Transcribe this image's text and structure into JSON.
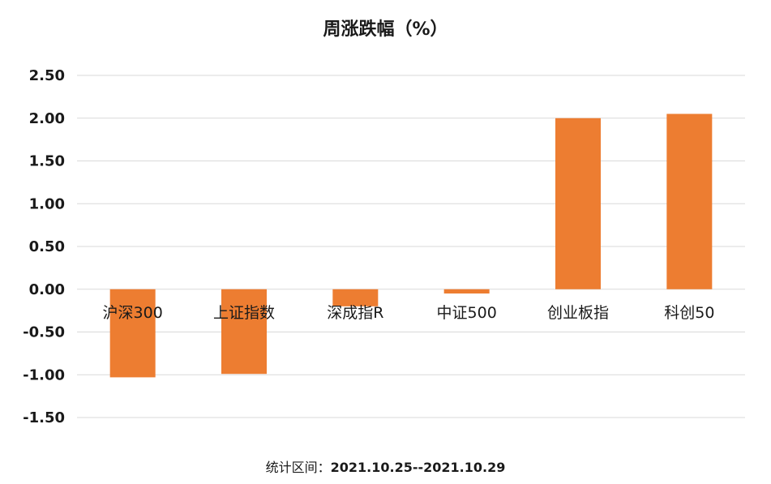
{
  "chart_data": {
    "type": "bar",
    "title": "周涨跌幅（%）",
    "categories": [
      "沪深300",
      "上证指数",
      "深成指R",
      "中证500",
      "创业板指",
      "科创50"
    ],
    "values": [
      -1.03,
      -0.99,
      -0.2,
      -0.05,
      2.0,
      2.05
    ],
    "ylim": [
      -1.5,
      2.5
    ],
    "yticks": [
      "2.50",
      "2.00",
      "1.50",
      "1.00",
      "0.50",
      "0.00",
      "-0.50",
      "-1.00",
      "-1.50"
    ],
    "ytick_values": [
      2.5,
      2.0,
      1.5,
      1.0,
      0.5,
      0.0,
      -0.5,
      -1.0,
      -1.5
    ],
    "grid": true,
    "bar_color": "#ED7D31",
    "xlabel": "",
    "ylabel": ""
  },
  "footer": {
    "label": "统计区间：",
    "range": "2021.10.25--2021.10.29"
  }
}
